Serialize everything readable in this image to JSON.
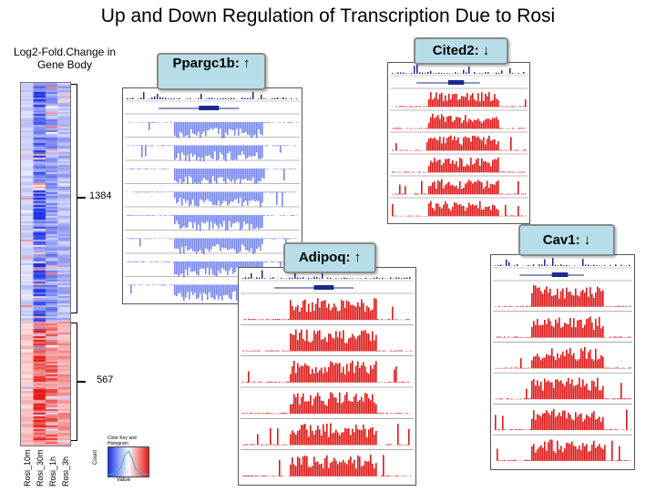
{
  "title": "Up and Down Regulation of Transcription Due to Rosi",
  "heatmap": {
    "label": "Log2-Fold.Change in Gene Body",
    "columns": [
      "Rosi_10m",
      "Rosi_30m",
      "Rosi_1h",
      "Rosi_3h"
    ],
    "clusters": [
      {
        "name": "down",
        "count": "1384"
      },
      {
        "name": "up",
        "count": "567"
      }
    ],
    "key_title": "Color Key and Histogram",
    "key_ylabel": "Count",
    "key_xlabel": "Value",
    "colors": {
      "down": "#1a33e6",
      "up": "#e61a1a",
      "neutral": "#ffffff"
    }
  },
  "panels": [
    {
      "gene": "Ppargc1b",
      "callout": "Ppargc1b: ↑",
      "signal": "down",
      "tracks": 8
    },
    {
      "gene": "Cited2",
      "callout": "Cited2: ↓",
      "signal": "up",
      "tracks": 6
    },
    {
      "gene": "Adipoq",
      "callout": "Adipoq: ↑",
      "signal": "up",
      "tracks": 6
    },
    {
      "gene": "Cav1",
      "callout": "Cav1: ↓",
      "signal": "up",
      "tracks": 6
    }
  ],
  "colors": {
    "callout_fill": "#b7dde8",
    "track_blue": "#4a5ff0",
    "track_red": "#e01818",
    "track_navy": "#1a2a8a"
  }
}
